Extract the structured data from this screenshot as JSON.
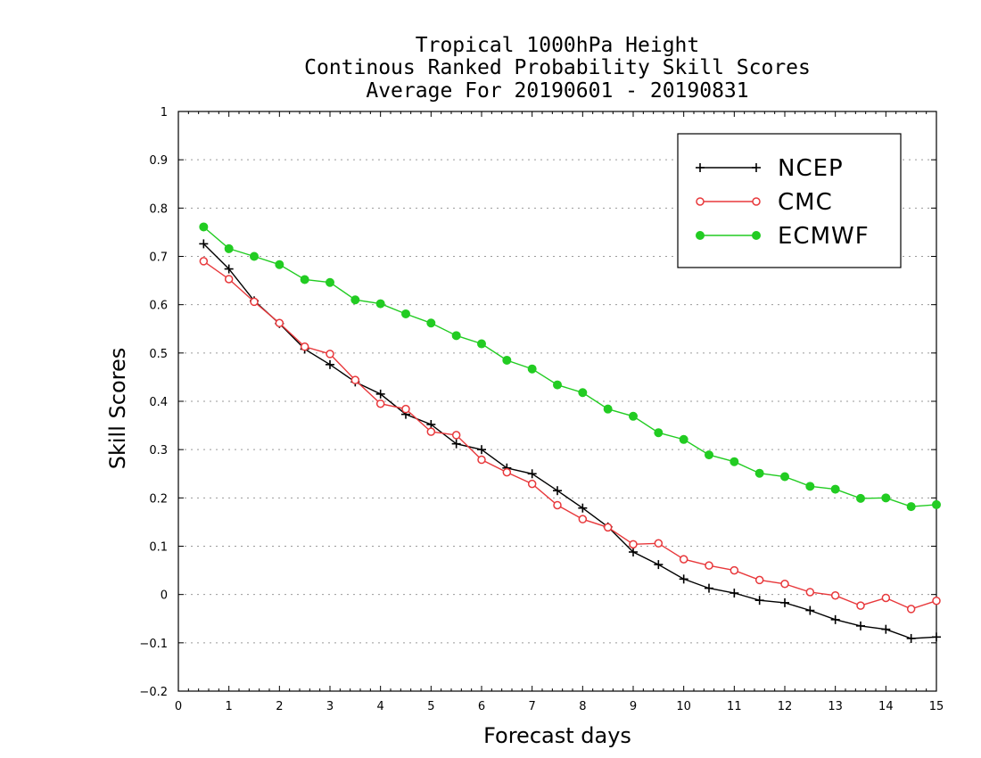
{
  "chart_data": {
    "type": "line",
    "title_lines": [
      "Tropical 1000hPa Height",
      "Continous Ranked Probability Skill Scores",
      "Average For 20190601 - 20190831"
    ],
    "xlabel": "Forecast days",
    "ylabel": "Skill Scores",
    "xlim": [
      0,
      15
    ],
    "ylim": [
      -0.2,
      1
    ],
    "xticks": [
      "0",
      "1",
      "2",
      "3",
      "4",
      "5",
      "6",
      "7",
      "8",
      "9",
      "10",
      "11",
      "12",
      "13",
      "14",
      "15"
    ],
    "yticks": [
      "-0.2",
      "-0.1",
      "0",
      "0.1",
      "0.2",
      "0.3",
      "0.4",
      "0.5",
      "0.6",
      "0.7",
      "0.8",
      "0.9",
      "1"
    ],
    "grid": "horizontal dotted",
    "legend_position": "top-right",
    "x": [
      0.5,
      1,
      1.5,
      2,
      2.5,
      3,
      3.5,
      4,
      4.5,
      5,
      5.5,
      6,
      6.5,
      7,
      7.5,
      8,
      8.5,
      9,
      9.5,
      10,
      10.5,
      11,
      11.5,
      12,
      12.5,
      13,
      13.5,
      14,
      14.5,
      15
    ],
    "series": [
      {
        "name": "NCEP",
        "color": "#000000",
        "marker": "plus",
        "values": [
          0.726,
          0.674,
          0.608,
          0.561,
          0.508,
          0.476,
          0.44,
          0.415,
          0.373,
          0.352,
          0.312,
          0.3,
          0.262,
          0.25,
          0.215,
          0.179,
          0.14,
          0.088,
          0.062,
          0.032,
          0.013,
          0.003,
          -0.012,
          -0.017,
          -0.033,
          -0.052,
          -0.065,
          -0.072,
          -0.091,
          -0.088
        ]
      },
      {
        "name": "CMC",
        "color": "#e8383b",
        "marker": "open-circle",
        "values": [
          0.69,
          0.653,
          0.606,
          0.562,
          0.513,
          0.498,
          0.444,
          0.395,
          0.384,
          0.337,
          0.33,
          0.279,
          0.253,
          0.229,
          0.185,
          0.156,
          0.139,
          0.104,
          0.106,
          0.073,
          0.06,
          0.05,
          0.03,
          0.022,
          0.005,
          -0.002,
          -0.023,
          -0.007,
          -0.03,
          -0.013
        ]
      },
      {
        "name": "ECMWF",
        "color": "#22cc22",
        "marker": "filled-circle",
        "values": [
          0.761,
          0.716,
          0.7,
          0.683,
          0.652,
          0.646,
          0.61,
          0.602,
          0.581,
          0.562,
          0.536,
          0.519,
          0.485,
          0.467,
          0.434,
          0.418,
          0.384,
          0.369,
          0.335,
          0.321,
          0.289,
          0.275,
          0.251,
          0.244,
          0.224,
          0.218,
          0.199,
          0.2,
          0.182,
          0.186
        ]
      }
    ]
  }
}
